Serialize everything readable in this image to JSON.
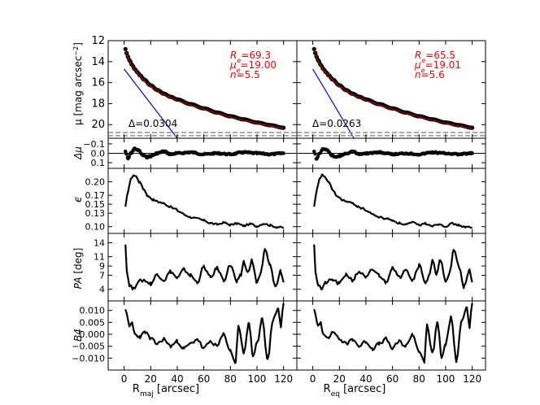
{
  "chart_data": {
    "type": "line",
    "description_layout": "grid of 5 rows x 2 columns of profile panels",
    "columns": [
      {
        "xlabel_main": "R",
        "xlabel_sub": "maj",
        "xlabel_units": " [arcsec]",
        "x_ticks": [
          "0",
          "20",
          "40",
          "60",
          "80",
          "100",
          "120"
        ],
        "xlim": [
          -12,
          130
        ],
        "fit": {
          "Re": "69.3",
          "mue": "19.00",
          "n": "5.5",
          "delta": "0.0304"
        }
      },
      {
        "xlabel_main": "R",
        "xlabel_sub": "eq",
        "xlabel_units": " [arcsec]",
        "x_ticks": [
          "0",
          "20",
          "40",
          "60",
          "80",
          "100",
          "120"
        ],
        "xlim": [
          -12,
          130
        ],
        "fit": {
          "Re": "65.5",
          "mue": "19.01",
          "n": "5.6",
          "delta": "0.0263"
        }
      }
    ],
    "fit_labels": {
      "re_sym": "R",
      "re_sub": "e",
      "mue_sym": "μ",
      "mue_sub": "e",
      "n_sym": "n",
      "eq": "=",
      "delta_sym": "Δ"
    },
    "panels": [
      {
        "id": "mu",
        "ylabel": "μ [mag arcsec",
        "ylabel_sup": "−2",
        "ylabel_end": "]",
        "ylim": [
          21.3,
          12
        ],
        "y_ticks": [
          "12",
          "14",
          "16",
          "18",
          "20"
        ],
        "y_tick_values": [
          12,
          14,
          16,
          18,
          20
        ],
        "limit_line": 20.9
      },
      {
        "id": "dmu",
        "ylabel": "Δμ",
        "ylim": [
          0.16,
          -0.16
        ],
        "y_ticks": [
          "−0.1",
          "0.0",
          "0.1"
        ],
        "y_tick_values": [
          -0.1,
          0.0,
          0.1
        ]
      },
      {
        "id": "eps",
        "ylabel": "ϵ",
        "ylim": [
          0.085,
          0.23
        ],
        "y_ticks": [
          "0.20",
          "0.17",
          "0.15",
          "0.13",
          "0.10"
        ],
        "y_tick_values": [
          0.2,
          0.17,
          0.15,
          0.13,
          0.1
        ]
      },
      {
        "id": "pa",
        "ylabel": "PA",
        "ylabel_units": " [deg]",
        "ylim": [
          1.5,
          16
        ],
        "y_ticks": [
          "14",
          "11",
          "9",
          "7",
          "4"
        ],
        "y_tick_values": [
          14,
          11,
          9,
          7,
          4
        ]
      },
      {
        "id": "b4",
        "ylabel": "B4",
        "ylim": [
          -0.015,
          0.014
        ],
        "y_ticks": [
          "0.010",
          "0.005",
          "0.000",
          "−0.005",
          "−0.010"
        ],
        "y_tick_values": [
          0.01,
          0.005,
          0.0,
          -0.005,
          -0.01
        ]
      }
    ],
    "series": {
      "mu_x": [
        1,
        2,
        3,
        4,
        6,
        8,
        10,
        12,
        15,
        20,
        25,
        30,
        35,
        40,
        50,
        60,
        70,
        80,
        90,
        100,
        110,
        120
      ],
      "mu_y": [
        12.8,
        13.2,
        13.55,
        13.85,
        14.3,
        14.7,
        15.0,
        15.3,
        15.7,
        16.25,
        16.7,
        17.05,
        17.35,
        17.6,
        18.05,
        18.45,
        18.85,
        19.2,
        19.5,
        19.8,
        20.05,
        20.3
      ],
      "disk_x": [
        0,
        40
      ],
      "disk_y": [
        14.7,
        21.3
      ],
      "eps_x": [
        1,
        3,
        5,
        7,
        9,
        12,
        15,
        18,
        22,
        26,
        30,
        34,
        38,
        42,
        46,
        50,
        55,
        60,
        65,
        70,
        75,
        80,
        85,
        90,
        95,
        100,
        105,
        110,
        115,
        120
      ],
      "eps_y": [
        0.143,
        0.18,
        0.205,
        0.215,
        0.212,
        0.198,
        0.183,
        0.168,
        0.16,
        0.155,
        0.152,
        0.145,
        0.14,
        0.133,
        0.126,
        0.121,
        0.118,
        0.114,
        0.108,
        0.105,
        0.109,
        0.104,
        0.107,
        0.102,
        0.106,
        0.101,
        0.107,
        0.103,
        0.099,
        0.098
      ],
      "pa_x": [
        1,
        2,
        4,
        7,
        10,
        15,
        20,
        25,
        30,
        35,
        40,
        45,
        50,
        55,
        60,
        65,
        70,
        75,
        80,
        85,
        88,
        90,
        93,
        96,
        100,
        103,
        106,
        110,
        114,
        118,
        120
      ],
      "pa_y": [
        14.0,
        8.0,
        5.0,
        4.0,
        5.5,
        6.0,
        5.2,
        7.2,
        6.0,
        7.8,
        6.4,
        8.2,
        7.0,
        5.5,
        8.8,
        6.5,
        8.5,
        6.0,
        9.2,
        5.5,
        7.0,
        10.0,
        7.5,
        10.2,
        5.5,
        7.5,
        12.5,
        9.0,
        4.5,
        8.0,
        5.5
      ],
      "b4_x": [
        1,
        2,
        4,
        6,
        8,
        12,
        16,
        20,
        25,
        30,
        35,
        40,
        45,
        50,
        55,
        60,
        65,
        70,
        75,
        80,
        84,
        86,
        90,
        94,
        97,
        100,
        104,
        108,
        112,
        116,
        118,
        120
      ],
      "b4_y": [
        0.011,
        0.008,
        0.003,
        0.005,
        0.0,
        -0.001,
        0.001,
        -0.002,
        -0.004,
        -0.002,
        -0.005,
        -0.003,
        -0.006,
        -0.004,
        -0.002,
        -0.006,
        -0.003,
        -0.005,
        0.0,
        -0.007,
        -0.012,
        0.004,
        -0.008,
        0.005,
        -0.01,
        -0.004,
        0.007,
        -0.011,
        0.006,
        0.011,
        0.003,
        0.013
      ],
      "dmu_x": [
        1,
        3,
        5,
        8,
        11,
        14,
        17,
        20,
        25,
        30,
        35,
        40,
        50,
        60,
        70,
        80,
        90,
        100,
        110,
        120
      ],
      "dmu_y": [
        -0.02,
        0.06,
        0.0,
        -0.05,
        -0.03,
        0.02,
        0.04,
        0.03,
        0.0,
        -0.02,
        0.01,
        0.0,
        -0.01,
        0.01,
        0.0,
        0.01,
        -0.01,
        0.0,
        0.01,
        0.0
      ]
    }
  },
  "colors": {
    "data": "#000000",
    "fit_text": "#ff0000",
    "model": "#cc0000",
    "disk": "#0000ff",
    "dashed": "#888888",
    "axis": "#000000"
  }
}
